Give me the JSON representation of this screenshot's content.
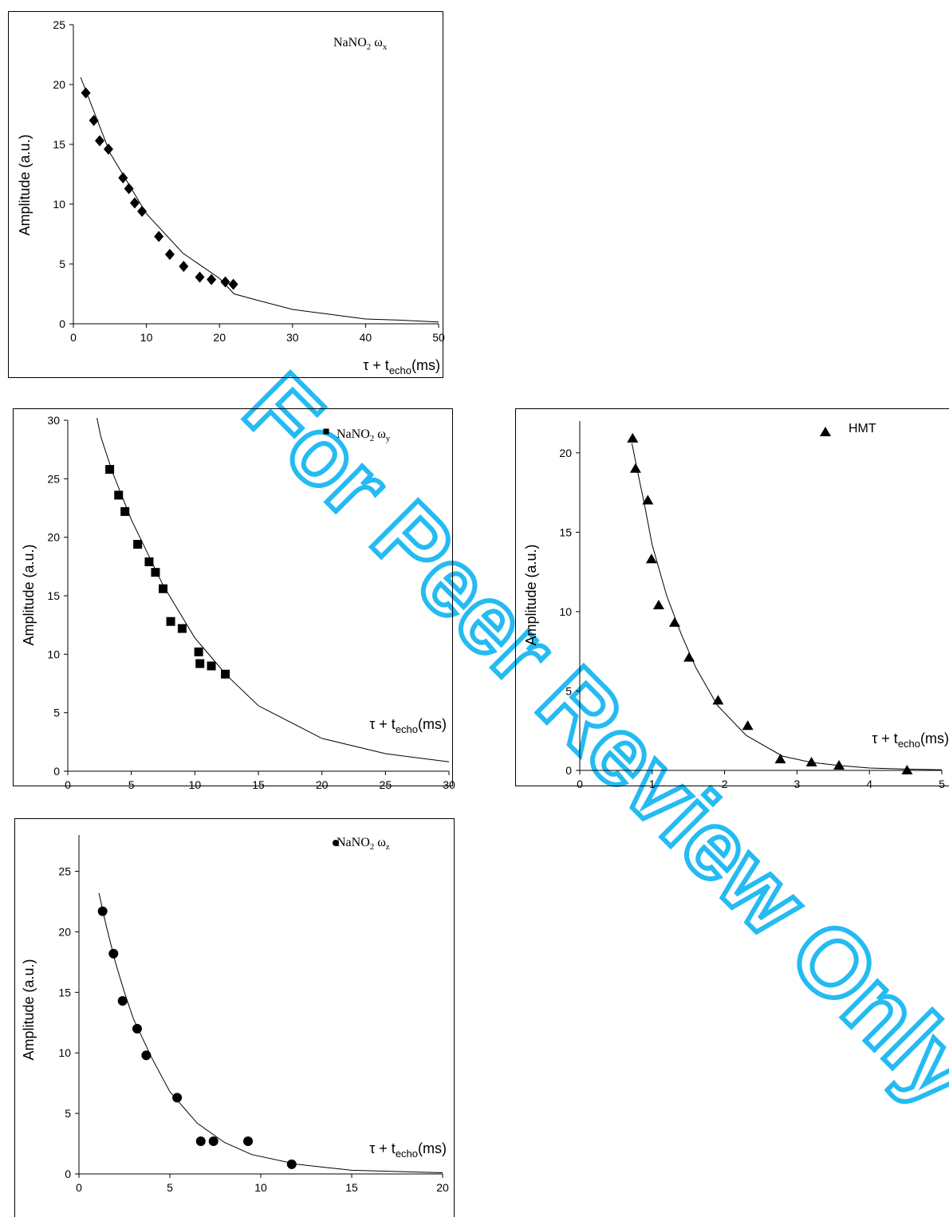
{
  "watermark": {
    "text": "For Peer Review Only",
    "color": "#00b0f0"
  },
  "chart_data": [
    {
      "id": "p1",
      "type": "scatter",
      "marker": "diamond",
      "legend": {
        "base": "NaNO",
        "sub1": "2",
        "mid": " ω",
        "sub2": "x"
      },
      "ylabel": "Amplitude (a.u.)",
      "xlabel": {
        "pre": "τ + t",
        "sub": "echo",
        "post": "(ms)"
      },
      "xlim": [
        0,
        50
      ],
      "ylim": [
        0,
        25
      ],
      "xticks": [
        "0",
        "10",
        "20",
        "30",
        "40",
        "50"
      ],
      "yticks": [
        "0",
        "5",
        "10",
        "15",
        "20",
        "25"
      ],
      "points": {
        "x": [
          1.7,
          2.8,
          3.6,
          4.8,
          6.8,
          7.6,
          8.4,
          9.4,
          11.7,
          13.2,
          15.1,
          17.3,
          18.9,
          20.8,
          21.9
        ],
        "y": [
          19.3,
          17.0,
          15.3,
          14.6,
          12.2,
          11.3,
          10.1,
          9.4,
          7.3,
          5.8,
          4.8,
          3.9,
          3.7,
          3.5,
          3.3
        ]
      },
      "fit": {
        "x": [
          1,
          5,
          10,
          15,
          20,
          22,
          25,
          30,
          35,
          40,
          45,
          50
        ],
        "y": [
          20.6,
          14.3,
          9.2,
          5.9,
          3.8,
          2.5,
          2.0,
          1.2,
          0.8,
          0.4,
          0.3,
          0.15
        ]
      },
      "colors": {
        "marker": "#000000",
        "line": "#000000"
      }
    },
    {
      "id": "p2",
      "type": "scatter",
      "marker": "square",
      "legend": {
        "base": "NaNO",
        "sub1": "2",
        "mid": " ω",
        "sub2": "y"
      },
      "ylabel": "Amplitude (a.u.)",
      "xlabel": {
        "pre": "τ + t",
        "sub": "echo",
        "post": "(ms)"
      },
      "xlim": [
        0,
        30
      ],
      "ylim": [
        0,
        30
      ],
      "xticks": [
        "0",
        "5",
        "10",
        "15",
        "20",
        "25",
        "30"
      ],
      "yticks": [
        "0",
        "5",
        "10",
        "15",
        "20",
        "25",
        "30"
      ],
      "points": {
        "x": [
          3.3,
          4.0,
          4.5,
          5.5,
          6.4,
          6.9,
          7.5,
          8.1,
          9.0,
          10.3,
          10.4,
          11.3,
          12.4
        ],
        "y": [
          25.8,
          23.6,
          22.2,
          19.4,
          17.9,
          17.0,
          15.6,
          12.8,
          12.2,
          10.2,
          9.2,
          9.0,
          8.3
        ]
      },
      "fit": {
        "x": [
          2.3,
          2.6,
          3.5,
          5,
          7.5,
          10,
          12.5,
          15,
          20,
          25,
          30
        ],
        "y": [
          30.2,
          28.6,
          25.6,
          21.5,
          15.9,
          11.4,
          8.2,
          5.6,
          2.8,
          1.5,
          0.8
        ]
      },
      "colors": {
        "marker": "#000000",
        "line": "#000000"
      }
    },
    {
      "id": "p3",
      "type": "scatter",
      "marker": "triangle",
      "legend": {
        "text": "HMT"
      },
      "ylabel": "Amplitude (a.u.)",
      "xlabel": {
        "pre": "τ + t",
        "sub": "echo",
        "post": "(ms)"
      },
      "xlim": [
        0,
        5
      ],
      "ylim": [
        0,
        22
      ],
      "xticks": [
        "0",
        "1",
        "2",
        "3",
        "4",
        "5"
      ],
      "yticks": [
        "0",
        "5",
        "10",
        "15",
        "20"
      ],
      "points": {
        "x": [
          0.73,
          0.77,
          0.94,
          0.99,
          1.09,
          1.31,
          1.51,
          1.91,
          2.32,
          2.77,
          3.2,
          3.58,
          4.52
        ],
        "y": [
          20.9,
          19.0,
          17.0,
          13.3,
          10.4,
          9.3,
          7.1,
          4.4,
          2.8,
          0.7,
          0.5,
          0.3,
          0.0
        ]
      },
      "fit": {
        "x": [
          0.72,
          0.8,
          0.9,
          1.0,
          1.2,
          1.4,
          1.6,
          1.9,
          2.3,
          2.8,
          3.2,
          3.6,
          4.0,
          4.5,
          5.0
        ],
        "y": [
          20.6,
          18.8,
          16.6,
          14.2,
          11.0,
          8.6,
          6.5,
          4.1,
          2.2,
          0.9,
          0.5,
          0.3,
          0.15,
          0.08,
          0.04
        ]
      },
      "colors": {
        "marker": "#000000",
        "line": "#000000"
      }
    },
    {
      "id": "p4",
      "type": "scatter",
      "marker": "circle",
      "legend": {
        "base": "NaNO",
        "sub1": "2",
        "mid": " ω",
        "sub2": "z"
      },
      "ylabel": "Amplitude (a.u.)",
      "xlabel": {
        "pre": "τ + t",
        "sub": "echo",
        "post": "(ms)"
      },
      "xlim": [
        0,
        20
      ],
      "ylim": [
        0,
        28
      ],
      "xticks": [
        "0",
        "5",
        "10",
        "15",
        "20"
      ],
      "yticks": [
        "0",
        "5",
        "10",
        "15",
        "20",
        "25"
      ],
      "points": {
        "x": [
          1.3,
          1.9,
          2.4,
          3.2,
          3.7,
          5.4,
          6.7,
          7.4,
          9.3,
          11.7
        ],
        "y": [
          21.7,
          18.2,
          14.3,
          12.0,
          9.8,
          6.3,
          2.7,
          2.7,
          2.7,
          0.8
        ]
      },
      "fit": {
        "x": [
          1.1,
          1.5,
          2,
          2.5,
          3,
          4,
          5,
          6.5,
          8,
          9.5,
          12,
          15,
          20
        ],
        "y": [
          23.2,
          20.5,
          17.5,
          15.0,
          12.8,
          9.6,
          6.8,
          4.2,
          2.6,
          1.6,
          0.8,
          0.3,
          0.1
        ]
      },
      "colors": {
        "marker": "#000000",
        "line": "#000000"
      }
    }
  ]
}
